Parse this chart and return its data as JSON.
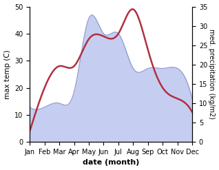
{
  "months": [
    "Jan",
    "Feb",
    "Mar",
    "Apr",
    "May",
    "Jun",
    "Jul",
    "Aug",
    "Sep",
    "Oct",
    "Nov",
    "Dec"
  ],
  "temperature": [
    4,
    20,
    28,
    28,
    38,
    39,
    40,
    49,
    34,
    20,
    16,
    11
  ],
  "precipitation": [
    9,
    9,
    10,
    13,
    32,
    28,
    28,
    19,
    19,
    19,
    19,
    11
  ],
  "temp_color": "#b03040",
  "precip_color_fill": "#c5cef0",
  "precip_color_edge": "#9099cc",
  "temp_ylim": [
    0,
    50
  ],
  "precip_ylim": [
    0,
    35
  ],
  "xlabel": "date (month)",
  "ylabel_left": "max temp (C)",
  "ylabel_right": "med. precipitation (kg/m2)",
  "axis_fontsize": 7.5,
  "tick_fontsize": 7,
  "label_fontsize": 8,
  "background_color": "#ffffff"
}
